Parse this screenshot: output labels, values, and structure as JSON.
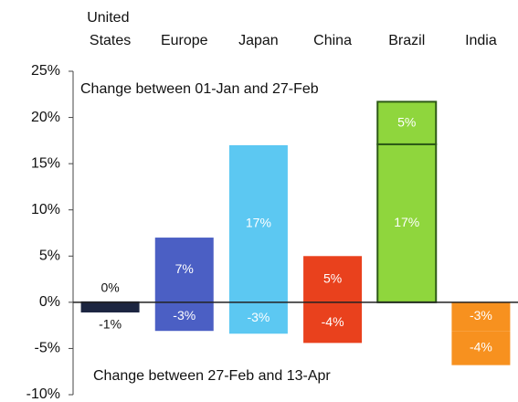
{
  "chart_data": {
    "type": "bar",
    "categories": [
      "United States",
      "Europe",
      "Japan",
      "China",
      "Brazil",
      "India"
    ],
    "colors": [
      "#1c2541",
      "#4b5fc4",
      "#5cc8f2",
      "#e9411d",
      "#8fd63d",
      "#f7911f"
    ],
    "series": [
      {
        "name": "Change between 01-Jan and 27-Feb",
        "values": [
          0.1,
          7,
          17,
          5,
          17.1,
          -3.1
        ],
        "value_labels": [
          "0%",
          "7%",
          "17%",
          "5%",
          "17%",
          "-3%"
        ]
      },
      {
        "name": "Change between 27-Feb and 13-Apr",
        "values": [
          -1.1,
          -3.1,
          -3.4,
          -4.4,
          4.6,
          -3.7
        ],
        "value_labels": [
          "-1%",
          "-3%",
          "-3%",
          "-4%",
          "5%",
          "-4%"
        ]
      }
    ],
    "ylim": [
      -10,
      25
    ],
    "yticks": [
      {
        "value": -10,
        "label": "-10%"
      },
      {
        "value": -5,
        "label": "-5%"
      },
      {
        "value": 0,
        "label": "0%"
      },
      {
        "value": 5,
        "label": "5%"
      },
      {
        "value": 10,
        "label": "10%"
      },
      {
        "value": 15,
        "label": "15%"
      },
      {
        "value": 20,
        "label": "20%"
      },
      {
        "value": 25,
        "label": "25%"
      }
    ]
  }
}
